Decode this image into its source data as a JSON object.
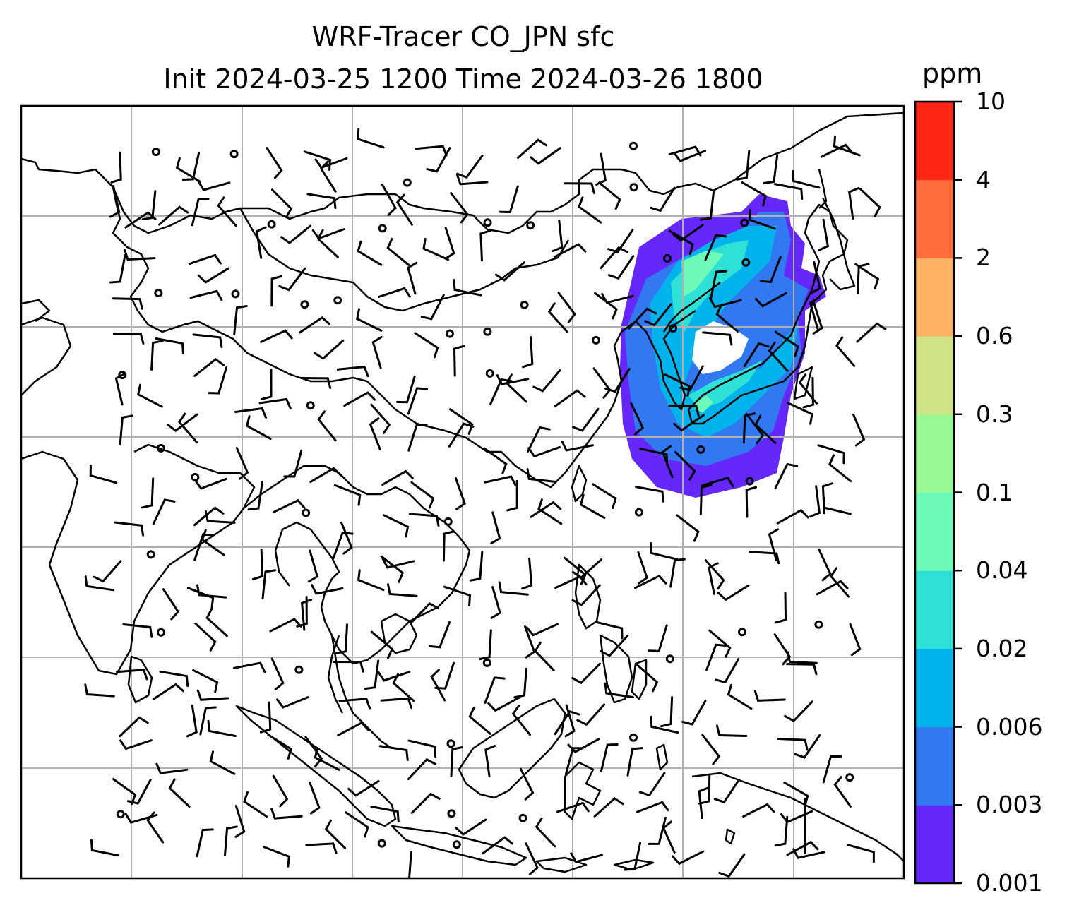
{
  "title": {
    "line1": "WRF-Tracer CO_JPN sfc",
    "line2": "Init 2024-03-25 1200 Time 2024-03-26 1800"
  },
  "colorbar": {
    "units": "ppm",
    "levels": [
      "0.001",
      "0.003",
      "0.006",
      "0.02",
      "0.04",
      "0.1",
      "0.3",
      "0.6",
      "2",
      "4",
      "10"
    ],
    "colors": [
      "#6428fa",
      "#3278f0",
      "#00b4eb",
      "#2ee0d6",
      "#6efab8",
      "#98f894",
      "#d0e286",
      "#fcb262",
      "#ff6e3a",
      "#ff2616"
    ]
  },
  "map": {
    "projection": "lat-lon",
    "gridlines": true,
    "coastlines": true,
    "field": "CO_JPN tracer concentration",
    "plume_region": "Japan, Korea, northeast China and surrounding seas"
  },
  "icons": {
    "wind-barbs": "wind-barb-icon",
    "calm-wind": "calm-circle-icon"
  }
}
